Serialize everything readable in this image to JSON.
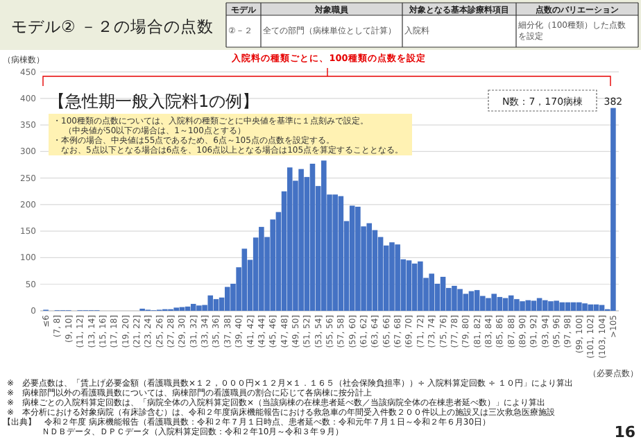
{
  "chart_data": {
    "type": "bar",
    "title": "モデル② －２の場合の点数",
    "subtitle": "【急性期一般入院料1の例】",
    "ylabel": "（病棟数）",
    "xlabel": "（必要点数）",
    "categories": [
      "≤6",
      null,
      "(7, 8]",
      null,
      "(9, 10]",
      null,
      "(11, 12]",
      null,
      "(13, 14]",
      null,
      "(15, 16]",
      null,
      "(17, 18]",
      null,
      "(19, 20]",
      null,
      "(21, 22]",
      null,
      "(23, 24]",
      null,
      "(25, 26]",
      null,
      "(27, 28]",
      null,
      "(29, 30]",
      null,
      "(31, 32]",
      null,
      "(33, 34]",
      null,
      "(35, 36]",
      null,
      "(37, 38]",
      null,
      "(39, 40]",
      null,
      "(41, 42]",
      null,
      "(43, 44]",
      null,
      "(45, 46]",
      null,
      "(47, 48]",
      null,
      "(49, 50]",
      null,
      "(51, 52]",
      null,
      "(53, 54]",
      null,
      "(55, 56]",
      null,
      "(57, 58]",
      null,
      "(59, 60]",
      null,
      "(61, 62]",
      null,
      "(63, 64]",
      null,
      "(65, 66]",
      null,
      "(67, 68]",
      null,
      "(69, 70]",
      null,
      "(71, 72]",
      null,
      "(73, 74]",
      null,
      "(75, 76]",
      null,
      "(77, 78]",
      null,
      "(79, 80]",
      null,
      "(81, 82]",
      null,
      "(83, 84]",
      null,
      "(85, 86]",
      null,
      "(87, 88]",
      null,
      "(89, 90]",
      null,
      "(91, 92]",
      null,
      "(93, 94]",
      null,
      "(95, 96]",
      null,
      "(97, 98]",
      null,
      "(99, 100]",
      null,
      "(101, 102]",
      null,
      "(103, 104]",
      null,
      ">105"
    ],
    "values": [
      2,
      0,
      1,
      1,
      1,
      0,
      1,
      1,
      1,
      1,
      0,
      0,
      0,
      0,
      0,
      0,
      0,
      4,
      2,
      1,
      2,
      3,
      3,
      6,
      7,
      8,
      13,
      10,
      11,
      29,
      22,
      25,
      45,
      51,
      82,
      117,
      96,
      138,
      158,
      139,
      172,
      186,
      225,
      270,
      245,
      267,
      252,
      277,
      235,
      283,
      219,
      219,
      216,
      169,
      198,
      196,
      159,
      165,
      152,
      139,
      123,
      129,
      125,
      97,
      95,
      89,
      93,
      62,
      70,
      51,
      64,
      43,
      47,
      41,
      32,
      37,
      39,
      28,
      24,
      32,
      26,
      24,
      29,
      22,
      18,
      20,
      19,
      24,
      20,
      18,
      19,
      16,
      16,
      16,
      16,
      14,
      12,
      12,
      11,
      3,
      382
    ],
    "color": "#4472c4",
    "value_labels": [
      null,
      null,
      null,
      null,
      null,
      null,
      null,
      null,
      null,
      null,
      null,
      null,
      null,
      null,
      null,
      null,
      null,
      null,
      null,
      null,
      null,
      null,
      null,
      null,
      null,
      null,
      null,
      null,
      null,
      null,
      null,
      null,
      null,
      null,
      null,
      null,
      null,
      null,
      null,
      null,
      null,
      null,
      null,
      null,
      null,
      null,
      null,
      null,
      null,
      null,
      null,
      null,
      null,
      null,
      null,
      null,
      null,
      null,
      null,
      null,
      null,
      null,
      null,
      null,
      null,
      null,
      null,
      null,
      null,
      null,
      null,
      null,
      null,
      null,
      null,
      null,
      null,
      null,
      null,
      null,
      null,
      null,
      null,
      null,
      null,
      null,
      null,
      null,
      null,
      null,
      null,
      null,
      null,
      null,
      null,
      null,
      null,
      null,
      null,
      null,
      "382"
    ],
    "ylim": [
      0,
      450
    ],
    "yticks": [
      0,
      50,
      100,
      150,
      200,
      250,
      300,
      350,
      400,
      450
    ],
    "grid": "y",
    "annotations": [
      "モデル",
      "対象職員",
      "対象となる基本診療料項目",
      "点数のバリエーション",
      "②－２",
      "全ての部門（病棟単位として計算）",
      "入院料",
      "細分化（100種類）した点数を設定",
      "入院料の種類ごとに、100種類の点数を設定",
      "N数：7，170病棟",
      "・100種類の点数については、入院料の種類ごとに中央値を基準に１点刻みで設定。",
      "（中央値が50以下の場合は、1～100点とする）",
      "・本例の場合、中央値は55点であるため、6点～105点の点数を設定する。",
      "なお、5点以下となる場合は6点を、106点以上となる場合は105点を算定することとなる。",
      "※　必要点数は、「賃上げ必要金額（看護職員数×１２，０００円×１２月×１．１６５（社会保険負担率））÷ 入院料算定回数 ÷ １０円」により算出",
      "※　病棟部門以外の看護職員数については、病棟部門の看護職員の割合に応じて各病棟に按分計上",
      "※　病棟ごとの入院料算定回数は、「病院全体の入院料算定回数×（当該病棟の在棟患者延べ数／当該病院全体の在棟患者延べ数）」により算出",
      "※　本分析における対象病院（有床診含む）は、令和２年度病床機能報告における救急車の年間受入件数２００件以上の施設又は三次救急医療施設",
      "【出典】　令和２年度 病床機能報告（看護職員数：令和２年７月１日時点、患者延べ数：令和元年７月１日～令和２年６月30日）",
      "ＮＤＢデータ、ＤＰＣデータ（入院料算定回数：令和２年10月～令和３年９月）",
      "16"
    ]
  }
}
